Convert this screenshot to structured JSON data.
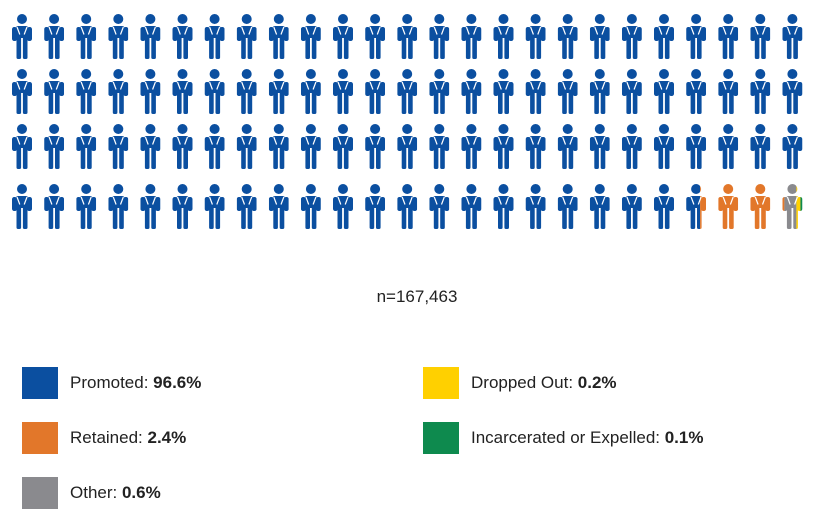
{
  "chart_data": {
    "type": "pictograph",
    "sample_label": "n=167,463",
    "icon": "student-with-backpack-icon",
    "grid": {
      "rows": 4,
      "cols": 25,
      "total_icons": 100
    },
    "categories": [
      {
        "name": "Promoted",
        "value_text": "96.6%",
        "value": 96.6,
        "color": "#0B4FA0"
      },
      {
        "name": "Retained",
        "value_text": "2.4%",
        "value": 2.4,
        "color": "#E2772A"
      },
      {
        "name": "Other",
        "value_text": "0.6%",
        "value": 0.6,
        "color": "#8A8A8E"
      },
      {
        "name": "Dropped Out",
        "value_text": "0.2%",
        "value": 0.2,
        "color": "#FFD000"
      },
      {
        "name": "Incarcerated or Expelled",
        "value_text": "0.1%",
        "value": 0.1,
        "color": "#0E8A4E"
      }
    ]
  },
  "legend": [
    {
      "label": "Promoted: ",
      "value": "96.6%"
    },
    {
      "label": "Retained: ",
      "value": "2.4%"
    },
    {
      "label": "Other: ",
      "value": "0.6%"
    },
    {
      "label": "Dropped Out: ",
      "value": "0.2%"
    },
    {
      "label": "Incarcerated or Expelled: ",
      "value": "0.1%"
    }
  ]
}
